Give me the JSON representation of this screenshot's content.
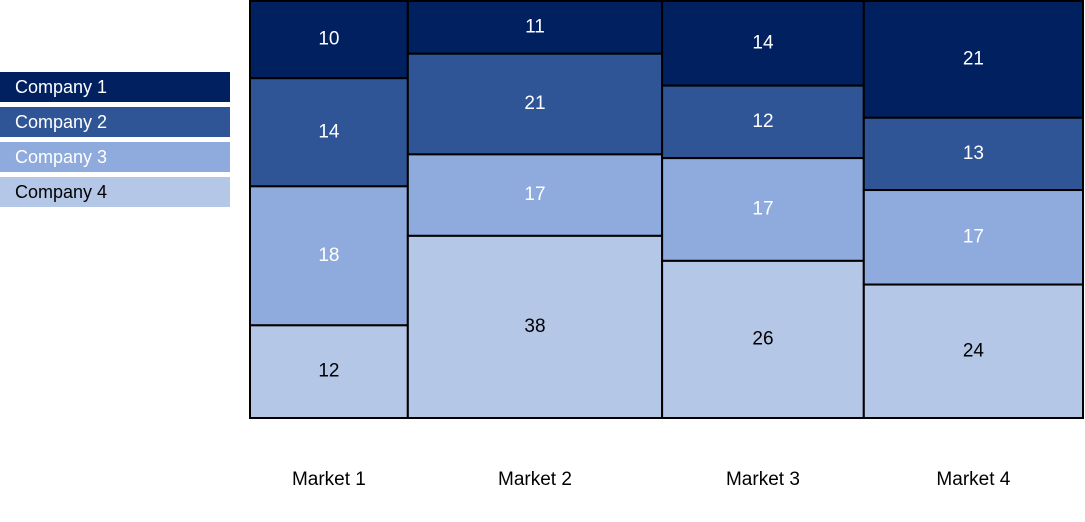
{
  "chart_data": {
    "type": "marimekko",
    "categories": [
      "Market 1",
      "Market 2",
      "Market 3",
      "Market 4"
    ],
    "series": [
      {
        "name": "Company 1",
        "values": [
          10,
          11,
          14,
          21
        ],
        "color": "#002060",
        "text_color": "#ffffff"
      },
      {
        "name": "Company 2",
        "values": [
          14,
          21,
          12,
          13
        ],
        "color": "#2f5597",
        "text_color": "#ffffff"
      },
      {
        "name": "Company 3",
        "values": [
          18,
          17,
          17,
          17
        ],
        "color": "#8faadc",
        "text_color": "#ffffff"
      },
      {
        "name": "Company 4",
        "values": [
          12,
          38,
          26,
          24
        ],
        "color": "#b4c7e7",
        "text_color": "#000000"
      }
    ],
    "legend": "left",
    "grid": false
  }
}
